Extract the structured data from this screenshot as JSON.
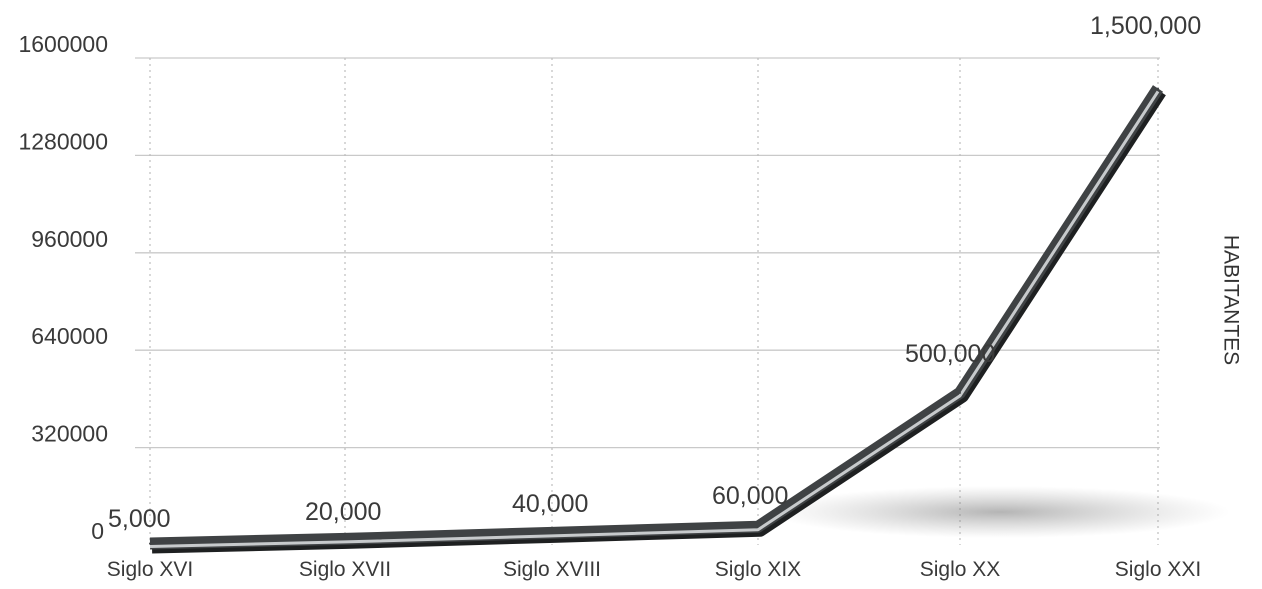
{
  "chart_data": {
    "type": "line",
    "ylabel": "HABITANTES",
    "xlabel": "",
    "ylim": [
      0,
      1600000
    ],
    "yticks": [
      "0",
      "320000",
      "640000",
      "960000",
      "1280000",
      "1600000"
    ],
    "categories": [
      "Siglo XVI",
      "Siglo XVII",
      "Siglo XVIII",
      "Siglo XIX",
      "Siglo XX",
      "Siglo XXI"
    ],
    "values": [
      5000,
      20000,
      40000,
      60000,
      500000,
      1500000
    ],
    "data_labels": [
      "5,000",
      "20,000",
      "40,000",
      "60,000",
      "500,000",
      "1,500,000"
    ],
    "grid": true,
    "line_color": "#3f4244"
  }
}
